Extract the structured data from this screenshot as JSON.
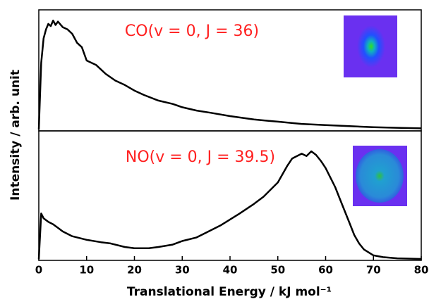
{
  "chart_data": [
    {
      "type": "line",
      "annotation": "CO(v = 0, J = 36)",
      "ylabel": "Intensity / arb. unit",
      "color": "#000000",
      "annotation_color": "#ff2020",
      "x": [
        0,
        0.5,
        1,
        1.5,
        2,
        2.5,
        3,
        3.5,
        4,
        5,
        6,
        7,
        8,
        9,
        10,
        12,
        14,
        16,
        18,
        20,
        22,
        25,
        28,
        30,
        33,
        36,
        40,
        45,
        50,
        55,
        60,
        65,
        70,
        75,
        80
      ],
      "values": [
        0,
        60,
        82,
        90,
        95,
        93,
        98,
        94,
        97,
        92,
        90,
        86,
        78,
        74,
        62,
        58,
        50,
        44,
        40,
        35,
        31,
        26,
        23,
        20,
        17,
        15,
        12,
        9,
        7,
        5,
        4,
        3,
        2,
        1.5,
        1
      ],
      "xlim": [
        0,
        80
      ],
      "ylim": [
        0,
        100
      ]
    },
    {
      "type": "line",
      "annotation": "NO(v = 0, J = 39.5)",
      "xlabel": "Translational Energy / kJ mol⁻¹",
      "color": "#000000",
      "annotation_color": "#ff2020",
      "x": [
        0,
        0.5,
        1,
        2,
        3,
        4,
        5,
        7,
        10,
        13,
        15,
        18,
        20,
        23,
        25,
        28,
        30,
        33,
        35,
        38,
        40,
        42,
        45,
        47,
        50,
        52,
        53,
        54,
        55,
        56,
        57,
        58,
        59,
        60,
        61,
        62,
        63,
        64,
        65,
        66,
        67,
        68,
        70,
        72,
        75,
        80
      ],
      "values": [
        0,
        38,
        34,
        31,
        29,
        26,
        23,
        19,
        16,
        14,
        13,
        10,
        9,
        9,
        10,
        12,
        15,
        18,
        22,
        28,
        33,
        38,
        46,
        52,
        64,
        78,
        84,
        86,
        88,
        86,
        90,
        87,
        82,
        76,
        68,
        60,
        50,
        40,
        30,
        20,
        13,
        8,
        3,
        1.5,
        0.5,
        0
      ],
      "xlim": [
        0,
        80
      ],
      "ylim": [
        0,
        100
      ],
      "xticks": [
        0,
        10,
        20,
        30,
        40,
        50,
        60,
        70,
        80
      ]
    }
  ]
}
